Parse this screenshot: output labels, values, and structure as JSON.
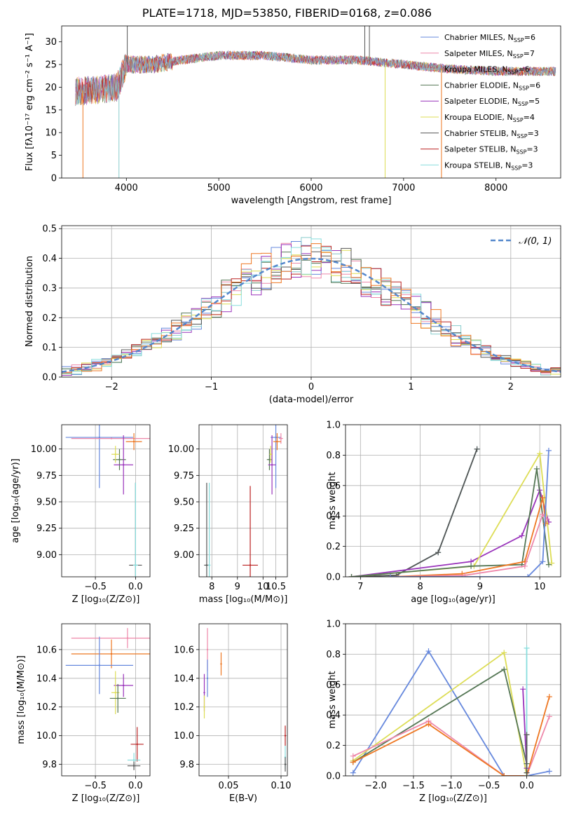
{
  "figure_title": "PLATE=1718, MJD=53850, FIBERID=0168, z=0.086",
  "colors": [
    "#6688dd",
    "#ee88aa",
    "#88cccc",
    "#557755",
    "#9933bb",
    "#dddd55",
    "#555555",
    "#bb2222",
    "#88dddd",
    "#ee7722"
  ],
  "chart_data": [
    {
      "id": "spectrum",
      "type": "line",
      "xlabel": "wavelength [Angstrom, rest frame]",
      "ylabel": "Flux [fλ10⁻¹⁷ erg cm⁻² s⁻¹ A⁻¹]",
      "xlim": [
        3300,
        8700
      ],
      "ylim": [
        0,
        33.5
      ],
      "xticks": [
        "4000",
        "5000",
        "6000",
        "7000",
        "8000"
      ],
      "yticks": [
        "0",
        "5",
        "10",
        "15",
        "20",
        "25",
        "30"
      ],
      "legend_position": "right",
      "legend": [
        {
          "base": "Chabrier MILES, N",
          "sub": "SSP",
          "tail": "=6",
          "color": "#6688dd"
        },
        {
          "base": "Salpeter MILES, N",
          "sub": "SSP",
          "tail": "=7",
          "color": "#ee88aa"
        },
        {
          "base": "Kroupa MILES, N",
          "sub": "SSP",
          "tail": "=6",
          "color": "#88cccc"
        },
        {
          "base": "Chabrier ELODIE, N",
          "sub": "SSP",
          "tail": "=6",
          "color": "#557755"
        },
        {
          "base": "Salpeter ELODIE, N",
          "sub": "SSP",
          "tail": "=5",
          "color": "#9933bb"
        },
        {
          "base": "Kroupa ELODIE, N",
          "sub": "SSP",
          "tail": "=4",
          "color": "#dddd55"
        },
        {
          "base": "Chabrier STELIB, N",
          "sub": "SSP",
          "tail": "=3",
          "color": "#555555"
        },
        {
          "base": "Salpeter STELIB, N",
          "sub": "SSP",
          "tail": "=3",
          "color": "#bb2222"
        },
        {
          "base": "Kroupa STELIB, N",
          "sub": "SSP",
          "tail": "=3",
          "color": "#88dddd"
        }
      ],
      "continuum": [
        [
          3400,
          19
        ],
        [
          3700,
          19.5
        ],
        [
          3900,
          20
        ],
        [
          4000,
          25
        ],
        [
          4300,
          25
        ],
        [
          4600,
          26
        ],
        [
          5000,
          27
        ],
        [
          5500,
          27
        ],
        [
          6000,
          26
        ],
        [
          6500,
          26
        ],
        [
          7000,
          25
        ],
        [
          7500,
          24
        ],
        [
          8000,
          23.5
        ],
        [
          8500,
          23.5
        ],
        [
          8700,
          23.5
        ]
      ],
      "data_range": [
        3450,
        8650
      ],
      "spikes": [
        [
          3530,
          0,
          "#ee7722"
        ],
        [
          3920,
          0,
          "#88cccc"
        ],
        [
          6800,
          0,
          "#dddd55"
        ],
        [
          7410,
          0,
          "#ee7722"
        ],
        [
          6580,
          33.5,
          "#555555"
        ],
        [
          6630,
          33.5,
          "#555555"
        ],
        [
          4010,
          33.5,
          "#555555"
        ]
      ]
    },
    {
      "id": "residuals",
      "type": "histogram",
      "xlabel": "(data-model)/error",
      "ylabel": "Normed distribution",
      "xlim": [
        -2.5,
        2.5
      ],
      "ylim": [
        0,
        0.51
      ],
      "xticks": [
        {
          "v": -2,
          "t": "−2"
        },
        {
          "v": -1,
          "t": "−1"
        },
        {
          "v": 0,
          "t": "0"
        },
        {
          "v": 1,
          "t": "1"
        },
        {
          "v": 2,
          "t": "2"
        }
      ],
      "yticks": [
        {
          "v": 0,
          "t": "0.0"
        },
        {
          "v": 0.1,
          "t": "0.1"
        },
        {
          "v": 0.2,
          "t": "0.2"
        },
        {
          "v": 0.3,
          "t": "0.3"
        },
        {
          "v": 0.4,
          "t": "0.4"
        },
        {
          "v": 0.5,
          "t": "0.5"
        }
      ],
      "bin_edges_from": -2.5,
      "bin_width": 0.1,
      "n_bins": 50,
      "normal_curve": {
        "label": "𝒩(0, 1)",
        "color": "#5588cc"
      },
      "legend_position": "top-right"
    },
    {
      "id": "age_vs_Z",
      "type": "errorbar",
      "xlabel": "Z [log₁₀(Z/Z⊙)]",
      "ylabel": "age  [log₁₀(age/yr)]",
      "xlim": [
        -0.92,
        0.18
      ],
      "ylim": [
        8.79,
        10.23
      ],
      "xticks": [
        {
          "v": -0.5,
          "t": "−0.5"
        },
        {
          "v": 0,
          "t": "0.0"
        }
      ],
      "yticks": [
        {
          "v": 9.0,
          "t": "9.00"
        },
        {
          "v": 9.25,
          "t": "9.25"
        },
        {
          "v": 9.5,
          "t": "9.50"
        },
        {
          "v": 9.75,
          "t": "9.75"
        },
        {
          "v": 10,
          "t": "10.00"
        }
      ],
      "points": [
        {
          "x": -0.45,
          "y": 10.11,
          "xerr": 0.42,
          "yerr": 0.48,
          "color": "#6688dd"
        },
        {
          "x": -0.3,
          "y": 10.1,
          "xerr": 0.5,
          "yerr": 0,
          "color": "#ee88aa"
        },
        {
          "x": -0.02,
          "y": 10.07,
          "xerr": 0.1,
          "yerr": 0.08,
          "color": "#ee7722"
        },
        {
          "x": -0.2,
          "y": 9.9,
          "xerr": 0.08,
          "yerr": 0.1,
          "color": "#557755"
        },
        {
          "x": -0.15,
          "y": 9.85,
          "xerr": 0.12,
          "yerr": 0.28,
          "color": "#9933bb"
        },
        {
          "x": -0.25,
          "y": 9.95,
          "xerr": 0.05,
          "yerr": 0.08,
          "color": "#dddd55"
        },
        {
          "x": 0.0,
          "y": 8.9,
          "xerr": 0.08,
          "yerr": 0.78,
          "color": "#555555"
        },
        {
          "x": 0.0,
          "y": 8.9,
          "xerr": 0.03,
          "yerr": 0.78,
          "color": "#88dddd"
        }
      ]
    },
    {
      "id": "age_vs_mass",
      "type": "errorbar",
      "xlabel": "mass [log₁₀(M/M⊙)]",
      "ylabel": "",
      "xlim": [
        7.5,
        10.95
      ],
      "ylim": [
        8.79,
        10.23
      ],
      "xticks": [
        {
          "v": 8,
          "t": "8"
        },
        {
          "v": 9,
          "t": "9"
        },
        {
          "v": 10,
          "t": "10"
        },
        {
          "v": 10.5,
          "t": "10.5"
        }
      ],
      "yticks": [
        {
          "v": 9.0,
          "t": "9.00"
        },
        {
          "v": 9.25,
          "t": "9.25"
        },
        {
          "v": 9.5,
          "t": "9.50"
        },
        {
          "v": 9.75,
          "t": "9.75"
        },
        {
          "v": 10,
          "t": "10.00"
        }
      ],
      "points": [
        {
          "x": 10.5,
          "y": 10.11,
          "xerr": 0.2,
          "yerr": 0.48,
          "color": "#6688dd"
        },
        {
          "x": 10.7,
          "y": 10.1,
          "xerr": 0.08,
          "yerr": 0.05,
          "color": "#ee88aa"
        },
        {
          "x": 10.55,
          "y": 10.07,
          "xerr": 0.15,
          "yerr": 0.08,
          "color": "#ee7722"
        },
        {
          "x": 10.25,
          "y": 9.9,
          "xerr": 0.1,
          "yerr": 0.1,
          "color": "#557755"
        },
        {
          "x": 10.35,
          "y": 9.85,
          "xerr": 0.15,
          "yerr": 0.28,
          "color": "#9933bb"
        },
        {
          "x": 10.3,
          "y": 9.95,
          "xerr": 0.05,
          "yerr": 0.08,
          "color": "#dddd55"
        },
        {
          "x": 7.8,
          "y": 8.9,
          "xerr": 0.1,
          "yerr": 0.78,
          "color": "#555555"
        },
        {
          "x": 7.9,
          "y": 8.9,
          "xerr": 0.05,
          "yerr": 0.78,
          "color": "#88dddd"
        },
        {
          "x": 9.5,
          "y": 8.9,
          "xerr": 0.3,
          "yerr": 0.75,
          "color": "#bb2222"
        }
      ]
    },
    {
      "id": "weight_vs_age",
      "type": "line",
      "xlabel": "age  [log₁₀(age/yr)]",
      "ylabel": "mass weight",
      "xlim": [
        6.75,
        10.35
      ],
      "ylim": [
        0,
        1.0
      ],
      "xticks": [
        {
          "v": 7,
          "t": "7"
        },
        {
          "v": 8,
          "t": "8"
        },
        {
          "v": 9,
          "t": "9"
        },
        {
          "v": 10,
          "t": "10"
        }
      ],
      "yticks": [
        {
          "v": 0,
          "t": "0.0"
        },
        {
          "v": 0.2,
          "t": "0.2"
        },
        {
          "v": 0.4,
          "t": "0.4"
        },
        {
          "v": 0.6,
          "t": "0.6"
        },
        {
          "v": 0.8,
          "t": "0.8"
        },
        {
          "v": 1.0,
          "t": "1.0"
        }
      ],
      "series": [
        {
          "color": "#88dddd",
          "points": [
            [
              6.85,
              0.0
            ],
            [
              7.6,
              0.01
            ],
            [
              8.3,
              0.16
            ],
            [
              8.95,
              0.84
            ]
          ]
        },
        {
          "color": "#555555",
          "points": [
            [
              6.85,
              0.0
            ],
            [
              7.6,
              0.01
            ],
            [
              8.3,
              0.16
            ],
            [
              8.95,
              0.84
            ]
          ]
        },
        {
          "color": "#9933bb",
          "points": [
            [
              6.85,
              0.0
            ],
            [
              8.85,
              0.1
            ],
            [
              9.7,
              0.27
            ],
            [
              10.0,
              0.57
            ],
            [
              10.15,
              0.36
            ]
          ]
        },
        {
          "color": "#dddd55",
          "points": [
            [
              6.85,
              0.0
            ],
            [
              8.9,
              0.07
            ],
            [
              10.0,
              0.81
            ],
            [
              10.2,
              0.09
            ]
          ]
        },
        {
          "color": "#557755",
          "points": [
            [
              6.85,
              0.0
            ],
            [
              8.85,
              0.07
            ],
            [
              9.7,
              0.08
            ],
            [
              9.95,
              0.71
            ],
            [
              10.15,
              0.08
            ]
          ]
        },
        {
          "color": "#ee7722",
          "points": [
            [
              7.5,
              0.0
            ],
            [
              8.7,
              0.02
            ],
            [
              9.75,
              0.1
            ],
            [
              10.05,
              0.52
            ],
            [
              10.1,
              0.35
            ]
          ]
        },
        {
          "color": "#ee88aa",
          "points": [
            [
              7.5,
              0.0
            ],
            [
              8.75,
              0.01
            ],
            [
              9.75,
              0.07
            ],
            [
              10.05,
              0.41
            ],
            [
              10.12,
              0.38
            ]
          ]
        },
        {
          "color": "#6688dd",
          "points": [
            [
              7.5,
              0.0
            ],
            [
              9.8,
              0.0
            ],
            [
              10.05,
              0.1
            ],
            [
              10.15,
              0.83
            ]
          ]
        }
      ]
    },
    {
      "id": "mass_vs_Z",
      "type": "errorbar",
      "xlabel": "Z [log₁₀(Z/Z⊙)]",
      "ylabel": "mass [log₁₀(M/M⊙)]",
      "xlim": [
        -0.92,
        0.18
      ],
      "ylim": [
        9.72,
        10.78
      ],
      "xticks": [
        {
          "v": -0.5,
          "t": "−0.5"
        },
        {
          "v": 0,
          "t": "0.0"
        }
      ],
      "yticks": [
        {
          "v": 9.8,
          "t": "9.8"
        },
        {
          "v": 10.0,
          "t": "10.0"
        },
        {
          "v": 10.2,
          "t": "10.2"
        },
        {
          "v": 10.4,
          "t": "10.4"
        },
        {
          "v": 10.6,
          "t": "10.6"
        }
      ],
      "points": [
        {
          "x": -0.1,
          "y": 10.68,
          "xerr": 0.7,
          "yerr": 0.07,
          "color": "#ee88aa"
        },
        {
          "x": -0.3,
          "y": 10.57,
          "xerr": 0.5,
          "yerr": 0.1,
          "color": "#ee7722"
        },
        {
          "x": -0.45,
          "y": 10.49,
          "xerr": 0.42,
          "yerr": 0.2,
          "color": "#6688dd"
        },
        {
          "x": -0.15,
          "y": 10.35,
          "xerr": 0.12,
          "yerr": 0.08,
          "color": "#9933bb"
        },
        {
          "x": -0.25,
          "y": 10.3,
          "xerr": 0.05,
          "yerr": 0.15,
          "color": "#dddd55"
        },
        {
          "x": -0.22,
          "y": 10.26,
          "xerr": 0.1,
          "yerr": 0.1,
          "color": "#557755"
        },
        {
          "x": 0.02,
          "y": 9.94,
          "xerr": 0.08,
          "yerr": 0.12,
          "color": "#bb2222"
        },
        {
          "x": -0.02,
          "y": 9.83,
          "xerr": 0.08,
          "yerr": 0.05,
          "color": "#88dddd"
        },
        {
          "x": -0.02,
          "y": 9.79,
          "xerr": 0.08,
          "yerr": 0.03,
          "color": "#555555"
        }
      ]
    },
    {
      "id": "mass_vs_ebv",
      "type": "errorbar",
      "xlabel": "E(B-V)",
      "ylabel": "",
      "xlim": [
        0.022,
        0.106
      ],
      "ylim": [
        9.72,
        10.78
      ],
      "xticks": [
        {
          "v": 0.05,
          "t": "0.05"
        },
        {
          "v": 0.1,
          "t": "0.10"
        }
      ],
      "yticks": [
        {
          "v": 9.8,
          "t": "9.8"
        },
        {
          "v": 10.0,
          "t": "10.0"
        },
        {
          "v": 10.2,
          "t": "10.2"
        },
        {
          "v": 10.4,
          "t": "10.4"
        },
        {
          "v": 10.6,
          "t": "10.6"
        }
      ],
      "points": [
        {
          "x": 0.03,
          "y": 10.6,
          "xerr": 0,
          "yerr": 0.15,
          "color": "#ee88aa"
        },
        {
          "x": 0.043,
          "y": 10.5,
          "xerr": 0,
          "yerr": 0.08,
          "color": "#ee7722"
        },
        {
          "x": 0.03,
          "y": 10.4,
          "xerr": 0,
          "yerr": 0.13,
          "color": "#6688dd"
        },
        {
          "x": 0.027,
          "y": 10.3,
          "xerr": 0,
          "yerr": 0.13,
          "color": "#9933bb"
        },
        {
          "x": 0.027,
          "y": 10.2,
          "xerr": 0,
          "yerr": 0.08,
          "color": "#dddd55"
        },
        {
          "x": 0.104,
          "y": 10.0,
          "xerr": 0,
          "yerr": 0.07,
          "color": "#bb2222"
        },
        {
          "x": 0.104,
          "y": 9.85,
          "xerr": 0,
          "yerr": 0.08,
          "color": "#88dddd"
        },
        {
          "x": 0.104,
          "y": 9.8,
          "xerr": 0,
          "yerr": 0.05,
          "color": "#555555"
        }
      ]
    },
    {
      "id": "weight_vs_Z",
      "type": "line",
      "xlabel": "Z [log₁₀(Z/Z⊙)]",
      "ylabel": "mass weight",
      "xlim": [
        -2.4,
        0.45
      ],
      "ylim": [
        0,
        1.0
      ],
      "xticks": [
        {
          "v": -2,
          "t": "−2.0"
        },
        {
          "v": -1.5,
          "t": "−1.5"
        },
        {
          "v": -1,
          "t": "−1.0"
        },
        {
          "v": -0.5,
          "t": "−0.5"
        },
        {
          "v": 0,
          "t": "0.0"
        }
      ],
      "yticks": [
        {
          "v": 0,
          "t": "0.0"
        },
        {
          "v": 0.2,
          "t": "0.2"
        },
        {
          "v": 0.4,
          "t": "0.4"
        },
        {
          "v": 0.6,
          "t": "0.6"
        },
        {
          "v": 0.8,
          "t": "0.8"
        },
        {
          "v": 1.0,
          "t": "1.0"
        }
      ],
      "series": [
        {
          "color": "#6688dd",
          "points": [
            [
              -2.3,
              0.02
            ],
            [
              -1.3,
              0.82
            ],
            [
              -0.3,
              0.0
            ],
            [
              0,
              0.0
            ],
            [
              0.3,
              0.03
            ]
          ]
        },
        {
          "color": "#dddd55",
          "points": [
            [
              -2.3,
              0.1
            ],
            [
              -0.3,
              0.81
            ],
            [
              0,
              0.0
            ]
          ]
        },
        {
          "color": "#557755",
          "points": [
            [
              -2.3,
              0.09
            ],
            [
              -0.3,
              0.7
            ],
            [
              0,
              0.08
            ]
          ]
        },
        {
          "color": "#ee88aa",
          "points": [
            [
              -2.3,
              0.13
            ],
            [
              -1.3,
              0.36
            ],
            [
              -0.3,
              0.0
            ],
            [
              0,
              0.0
            ],
            [
              0.3,
              0.39
            ]
          ]
        },
        {
          "color": "#ee7722",
          "points": [
            [
              -2.3,
              0.09
            ],
            [
              -1.3,
              0.34
            ],
            [
              -0.3,
              0.0
            ],
            [
              0,
              0.0
            ],
            [
              0.3,
              0.52
            ]
          ]
        },
        {
          "color": "#9933bb",
          "points": [
            [
              -0.05,
              0.57
            ],
            [
              0,
              0.05
            ]
          ]
        },
        {
          "color": "#88dddd",
          "points": [
            [
              0,
              0.84
            ],
            [
              0,
              0.0
            ]
          ]
        },
        {
          "color": "#555555",
          "points": [
            [
              0,
              0.27
            ],
            [
              0,
              0.02
            ]
          ]
        }
      ]
    }
  ]
}
